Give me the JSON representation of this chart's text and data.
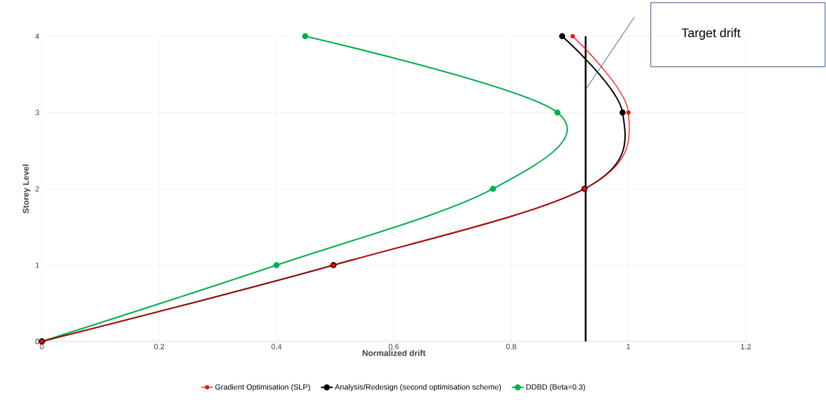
{
  "chart_data": {
    "type": "line",
    "xlabel": "Normalized drift",
    "ylabel": "Storey Level",
    "xlim": [
      0,
      1.2
    ],
    "xticks": [
      0,
      0.2,
      0.4,
      0.6,
      0.8,
      1,
      1.2
    ],
    "ylim": [
      0,
      4
    ],
    "yticks": [
      0,
      1,
      2,
      3,
      4
    ],
    "grid": true,
    "legend": "bottom",
    "marker": "circle",
    "series": [
      {
        "name": "Gradient Optimisation (SLP)",
        "color": "#ff0000",
        "x": [
          0,
          0.497,
          0.925,
          1.0,
          0.905
        ],
        "values": [
          0,
          1,
          2,
          3,
          4
        ]
      },
      {
        "name": "Analysis/Redesign (second optimisation scheme)",
        "color": "#000000",
        "x": [
          0,
          0.497,
          0.925,
          0.99,
          0.887
        ],
        "values": [
          0,
          1,
          2,
          3,
          4
        ]
      },
      {
        "name": "DDBD (Beta=0.3)",
        "color": "#00b050",
        "x": [
          0,
          0.4,
          0.769,
          0.879,
          0.449
        ],
        "values": [
          0,
          1,
          2,
          3,
          4
        ]
      }
    ],
    "ref_lines": [
      {
        "axis": "x",
        "value": 0.927,
        "color": "#000000"
      }
    ],
    "annotations": [
      "Target drift"
    ]
  }
}
